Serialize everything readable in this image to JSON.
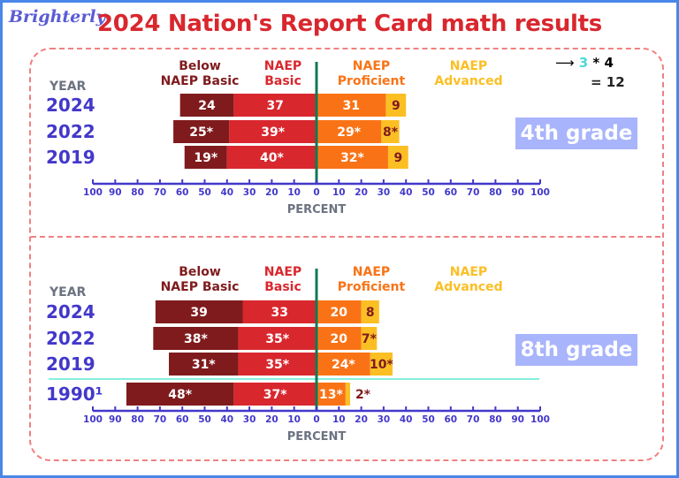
{
  "header": {
    "logo": "Brighterly",
    "title": "2024 Nation's Report Card math results"
  },
  "note": {
    "a": "3",
    "op": "* 4",
    "eq": "= 12"
  },
  "colors": {
    "below_basic": "#7f1b1d",
    "basic": "#d9272e",
    "proficient": "#f97316",
    "advanced": "#fbbf24",
    "year": "#4338ca",
    "axis": "#4338ca",
    "zero_line": "#0f7a55",
    "title": "#d9272e"
  },
  "chart_data": [
    {
      "type": "bar",
      "orientation": "horizontal-diverging-stacked",
      "grade_label": "4th grade",
      "year_header": "YEAR",
      "legend": [
        "Below NAEP Basic",
        "NAEP Basic",
        "NAEP Proficient",
        "NAEP Advanced"
      ],
      "xlabel": "PERCENT",
      "xlim": [
        -100,
        100
      ],
      "xticks": [
        "100",
        "90",
        "80",
        "70",
        "60",
        "50",
        "40",
        "30",
        "20",
        "10",
        "0",
        "10",
        "20",
        "30",
        "40",
        "50",
        "60",
        "70",
        "80",
        "90",
        "100"
      ],
      "categories": [
        "2024",
        "2022",
        "2019"
      ],
      "series": [
        {
          "name": "Below NAEP Basic",
          "values": [
            24,
            25,
            19
          ],
          "labels": [
            "24",
            "25*",
            "19*"
          ]
        },
        {
          "name": "NAEP Basic",
          "values": [
            37,
            39,
            40
          ],
          "labels": [
            "37",
            "39*",
            "40*"
          ]
        },
        {
          "name": "NAEP Proficient",
          "values": [
            31,
            29,
            32
          ],
          "labels": [
            "31",
            "29*",
            "32*"
          ]
        },
        {
          "name": "NAEP Advanced",
          "values": [
            9,
            8,
            9
          ],
          "labels": [
            "9",
            "8*",
            "9"
          ]
        }
      ]
    },
    {
      "type": "bar",
      "orientation": "horizontal-diverging-stacked",
      "grade_label": "8th grade",
      "year_header": "YEAR",
      "legend": [
        "Below NAEP Basic",
        "NAEP Basic",
        "NAEP Proficient",
        "NAEP Advanced"
      ],
      "xlabel": "PERCENT",
      "xlim": [
        -100,
        100
      ],
      "xticks": [
        "100",
        "90",
        "80",
        "70",
        "60",
        "50",
        "40",
        "30",
        "20",
        "10",
        "0",
        "10",
        "20",
        "30",
        "40",
        "50",
        "60",
        "70",
        "80",
        "90",
        "100"
      ],
      "categories": [
        "2024",
        "2022",
        "2019",
        "1990¹"
      ],
      "series": [
        {
          "name": "Below NAEP Basic",
          "values": [
            39,
            38,
            31,
            48
          ],
          "labels": [
            "39",
            "38*",
            "31*",
            "48*"
          ]
        },
        {
          "name": "NAEP Basic",
          "values": [
            33,
            35,
            35,
            37
          ],
          "labels": [
            "33",
            "35*",
            "35*",
            "37*"
          ]
        },
        {
          "name": "NAEP Proficient",
          "values": [
            20,
            20,
            24,
            13
          ],
          "labels": [
            "20",
            "20",
            "24*",
            "13*"
          ]
        },
        {
          "name": "NAEP Advanced",
          "values": [
            8,
            7,
            10,
            2
          ],
          "labels": [
            "8",
            "7*",
            "10*",
            "2*"
          ]
        }
      ]
    }
  ]
}
